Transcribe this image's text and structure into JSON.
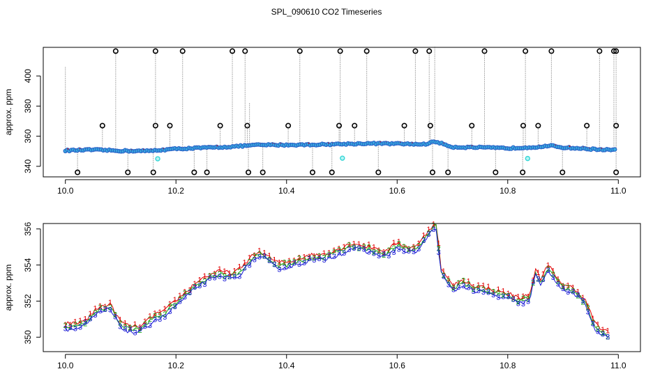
{
  "title": "SPL_090610  CO2 Timeseries",
  "chart_data": [
    {
      "type": "scatter",
      "title": "",
      "xlabel": "",
      "ylabel": "approx. ppm",
      "xlim": [
        9.96,
        11.04
      ],
      "ylim": [
        333,
        419
      ],
      "x_ticks": [
        10.0,
        10.2,
        10.4,
        10.6,
        10.8,
        11.0
      ],
      "x_tick_labels": [
        "10.0",
        "10.2",
        "10.4",
        "10.6",
        "10.8",
        "11.0"
      ],
      "y_ticks": [
        340,
        360,
        380,
        400
      ],
      "y_tick_labels": [
        "340",
        "360",
        "380",
        "400"
      ],
      "grid": false,
      "colors": {
        "points": "#2a63c8",
        "points_fill": "#39b0e0",
        "outlier": "#000000",
        "spike": "#9a9a9a",
        "flag": "#33d6d6",
        "red_trace": "#e00000"
      },
      "baseline_points": [
        [
          10.0,
          350.5
        ],
        [
          10.05,
          351.0
        ],
        [
          10.1,
          350.3
        ],
        [
          10.15,
          350.2
        ],
        [
          10.2,
          351.6
        ],
        [
          10.25,
          352.3
        ],
        [
          10.3,
          353.0
        ],
        [
          10.33,
          353.8
        ],
        [
          10.35,
          354.2
        ],
        [
          10.4,
          354.2
        ],
        [
          10.45,
          354.4
        ],
        [
          10.5,
          354.8
        ],
        [
          10.55,
          355.2
        ],
        [
          10.6,
          355.0
        ],
        [
          10.65,
          354.6
        ],
        [
          10.66,
          355.8
        ],
        [
          10.67,
          356.4
        ],
        [
          10.7,
          352.8
        ],
        [
          10.75,
          352.5
        ],
        [
          10.8,
          352.0
        ],
        [
          10.85,
          352.8
        ],
        [
          10.88,
          353.6
        ],
        [
          10.9,
          352.5
        ],
        [
          10.95,
          351.5
        ],
        [
          10.99,
          350.8
        ]
      ],
      "high_outliers": [
        10.091,
        10.163,
        10.212,
        10.302,
        10.325,
        10.424,
        10.497,
        10.545,
        10.633,
        10.658,
        10.758,
        10.832,
        10.879,
        10.966,
        10.992,
        10.996
      ],
      "mid_outliers": [
        10.067,
        10.163,
        10.189,
        10.28,
        10.329,
        10.403,
        10.495,
        10.523,
        10.613,
        10.66,
        10.735,
        10.828,
        10.855,
        10.943,
        10.996
      ],
      "low_outliers": [
        10.022,
        10.113,
        10.159,
        10.233,
        10.256,
        10.331,
        10.357,
        10.447,
        10.482,
        10.566,
        10.664,
        10.692,
        10.778,
        10.827,
        10.899,
        10.996
      ],
      "flag_points": [
        [
          10.167,
          345.0
        ],
        [
          10.501,
          345.4
        ],
        [
          10.836,
          345.2
        ]
      ],
      "outlier_levels": {
        "high": 416.5,
        "mid": 367.0,
        "low": 336.0
      }
    },
    {
      "type": "line",
      "title": "",
      "xlabel": "",
      "ylabel": "approx. ppm",
      "xlim": [
        9.96,
        11.04
      ],
      "ylim": [
        349.2,
        356.3
      ],
      "x_ticks": [
        10.0,
        10.2,
        10.4,
        10.6,
        10.8,
        11.0
      ],
      "x_tick_labels": [
        "10.0",
        "10.2",
        "10.4",
        "10.6",
        "10.8",
        "11.0"
      ],
      "y_ticks": [
        350,
        352,
        354,
        356
      ],
      "y_tick_labels": [
        "350",
        "352",
        "354",
        "356"
      ],
      "grid": false,
      "series": [
        {
          "label": "1",
          "color": "#e00000",
          "offset": 0.25
        },
        {
          "label": "2",
          "color": "#1aa81a",
          "offset": 0.1
        },
        {
          "label": "3",
          "color": "#1a1ad6",
          "offset": -0.05
        }
      ],
      "x": [
        10.0,
        10.02,
        10.04,
        10.06,
        10.08,
        10.1,
        10.12,
        10.14,
        10.16,
        10.18,
        10.2,
        10.22,
        10.24,
        10.26,
        10.28,
        10.3,
        10.32,
        10.34,
        10.36,
        10.38,
        10.4,
        10.42,
        10.44,
        10.46,
        10.48,
        10.5,
        10.52,
        10.54,
        10.56,
        10.58,
        10.6,
        10.62,
        10.64,
        10.65,
        10.66,
        10.67,
        10.68,
        10.7,
        10.72,
        10.74,
        10.76,
        10.78,
        10.8,
        10.82,
        10.84,
        10.85,
        10.86,
        10.87,
        10.88,
        10.9,
        10.92,
        10.94,
        10.96,
        10.98
      ],
      "y": [
        350.5,
        350.5,
        350.8,
        351.4,
        351.6,
        350.6,
        350.3,
        350.4,
        351.0,
        351.2,
        351.8,
        352.3,
        352.9,
        353.2,
        353.4,
        353.3,
        353.6,
        354.4,
        354.4,
        353.9,
        353.9,
        354.1,
        354.3,
        354.3,
        354.5,
        354.7,
        355.0,
        354.8,
        354.7,
        354.5,
        355.0,
        354.7,
        354.9,
        355.4,
        355.8,
        356.2,
        353.5,
        352.6,
        352.9,
        352.6,
        352.5,
        352.3,
        352.2,
        351.9,
        352.1,
        353.6,
        352.8,
        353.7,
        353.5,
        352.6,
        352.5,
        351.8,
        350.4,
        350.0
      ]
    }
  ]
}
